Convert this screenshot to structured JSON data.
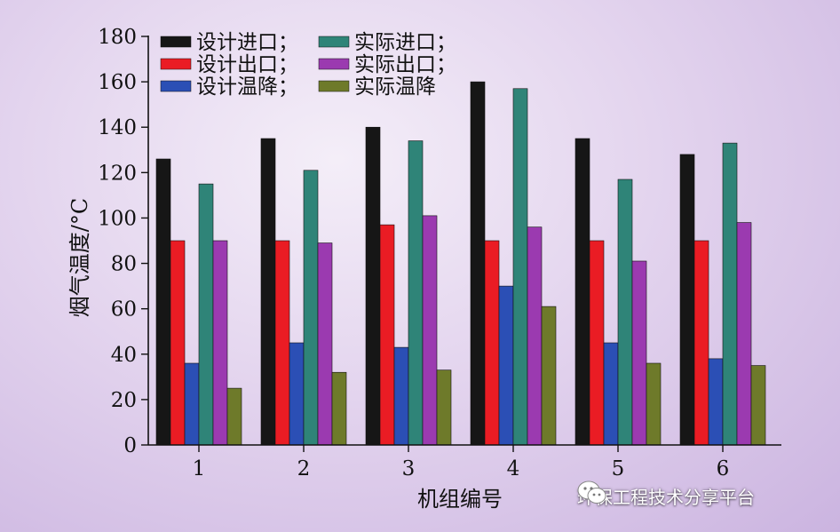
{
  "chart_data": {
    "type": "bar",
    "title": "",
    "xlabel": "机组编号",
    "ylabel": "烟气温度/°C",
    "categories": [
      "1",
      "2",
      "3",
      "4",
      "5",
      "6"
    ],
    "ylim": [
      0,
      180
    ],
    "yticks": [
      0,
      20,
      40,
      60,
      80,
      100,
      120,
      140,
      160,
      180
    ],
    "grid": false,
    "legend_position": "top-left",
    "series": [
      {
        "name": "设计进口；",
        "color": "#161616",
        "values": [
          126,
          135,
          140,
          160,
          135,
          128
        ]
      },
      {
        "name": "设计出口；",
        "color": "#ea1c24",
        "values": [
          90,
          90,
          97,
          90,
          90,
          90
        ]
      },
      {
        "name": "设计温降；",
        "color": "#2b4fb5",
        "values": [
          36,
          45,
          43,
          70,
          45,
          38
        ]
      },
      {
        "name": "实际进口；",
        "color": "#2f8478",
        "values": [
          115,
          121,
          134,
          157,
          117,
          133
        ]
      },
      {
        "name": "实际出口；",
        "color": "#9b3ab0",
        "values": [
          90,
          89,
          101,
          96,
          81,
          98
        ]
      },
      {
        "name": "实际温降",
        "color": "#6e7a2a",
        "values": [
          25,
          32,
          33,
          61,
          36,
          35
        ]
      }
    ]
  },
  "watermark": {
    "text": "环保工程技术分享平台",
    "icon": "wechat-icon"
  }
}
